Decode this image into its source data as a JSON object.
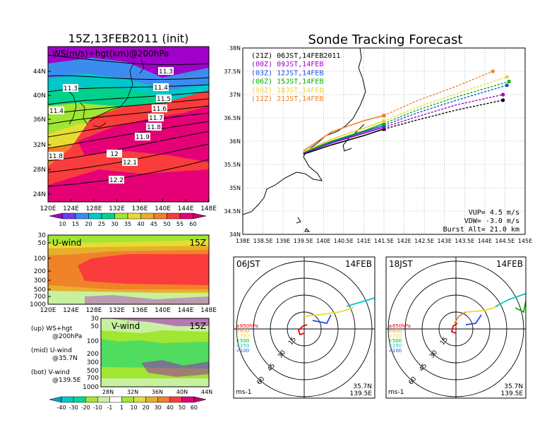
{
  "left_title": "15Z,13FEB2011 (init)",
  "right_title": "Sonde Tracking Forecast",
  "top_map": {
    "label": "WS(m/s)+hgt(km)@200hPa",
    "lat_ticks": [
      "44N",
      "40N",
      "36N",
      "32N",
      "28N",
      "24N"
    ],
    "lon_ticks": [
      "120E",
      "124E",
      "128E",
      "132E",
      "136E",
      "140E",
      "144E",
      "148E"
    ],
    "contour_labels": [
      "11.3",
      "11.3",
      "11.4",
      "11.5",
      "11.6",
      "11.7",
      "11.8",
      "11.9",
      "12",
      "12.1",
      "12.2",
      "11.4",
      "11.8"
    ],
    "colorbar_ticks": [
      "10",
      "15",
      "20",
      "25",
      "30",
      "35",
      "40",
      "45",
      "50",
      "55",
      "60"
    ],
    "colorbar_colors": [
      "#a000c8",
      "#6e3cf0",
      "#3c8cf0",
      "#00c8c8",
      "#00d28c",
      "#a0e632",
      "#e6dc32",
      "#e6af2d",
      "#f08228",
      "#fa3c3c",
      "#e60078",
      "#c0006e"
    ]
  },
  "u_wind": {
    "label": "U-wind",
    "time": "15Z",
    "p_ticks": [
      "30",
      "50",
      "100",
      "200",
      "300",
      "500",
      "700",
      "1000"
    ],
    "lon_ticks": [
      "120E",
      "124E",
      "128E",
      "132E",
      "136E",
      "140E",
      "144E",
      "148E"
    ]
  },
  "v_wind": {
    "label": "V-wind",
    "time": "15Z",
    "p_ticks": [
      "30",
      "50",
      "100",
      "200",
      "300",
      "500",
      "700",
      "1000"
    ],
    "lat_ticks": [
      "28N",
      "32N",
      "36N",
      "40N",
      "44N"
    ],
    "colorbar_ticks": [
      "-40",
      "-30",
      "-20",
      "-10",
      "-1",
      "1",
      "10",
      "20",
      "30",
      "40",
      "50",
      "60"
    ],
    "colorbar_colors": [
      "#00a0c8",
      "#00c8c8",
      "#00dc96",
      "#a0e632",
      "#c8f0a0",
      "#ffffff",
      "#a0e632",
      "#e6dc32",
      "#e6af2d",
      "#f08228",
      "#fa3c3c",
      "#e60078",
      "#c0006e"
    ]
  },
  "legend_notes": {
    "up1": "(up) WS+hgt",
    "up2": "@200hPa",
    "mid1": "(mid) U-wind",
    "mid2": "@35.7N",
    "bot1": "(bot) V-wind",
    "bot2": "@139.5E"
  },
  "chart_data": {
    "type": "line",
    "title": "Sonde Tracking Forecast",
    "xlabel": "",
    "ylabel": "",
    "xlim": [
      138,
      145
    ],
    "ylim": [
      34,
      38
    ],
    "x_ticks": [
      "138E",
      "138.5E",
      "139E",
      "139.5E",
      "140E",
      "140.5E",
      "141E",
      "141.5E",
      "142E",
      "142.5E",
      "143E",
      "143.5E",
      "144E",
      "144.5E",
      "145E"
    ],
    "y_ticks": [
      "34N",
      "34.5N",
      "35N",
      "35.5N",
      "36N",
      "36.5N",
      "37N",
      "37.5N",
      "38N"
    ],
    "grid": true,
    "series": [
      {
        "name": "(21Z) 06JST,14FEB2011",
        "color": "#000000",
        "x": [
          139.5,
          140.2,
          141.0,
          141.5,
          142.3,
          143.3,
          144.45
        ],
        "y": [
          35.72,
          35.92,
          36.12,
          36.26,
          36.45,
          36.67,
          36.88
        ]
      },
      {
        "name": "(00Z) 09JST,14FEB",
        "color": "#a000c8",
        "x": [
          139.5,
          140.2,
          141.0,
          141.5,
          142.3,
          143.3,
          144.45
        ],
        "y": [
          35.74,
          35.96,
          36.17,
          36.3,
          36.52,
          36.78,
          37.0
        ]
      },
      {
        "name": "(03Z) 12JST,14FEB",
        "color": "#1f4fe6",
        "x": [
          139.5,
          140.2,
          141.0,
          141.5,
          142.3,
          143.3,
          144.55
        ],
        "y": [
          35.75,
          35.98,
          36.2,
          36.34,
          36.6,
          36.88,
          37.2
        ]
      },
      {
        "name": "(06Z) 15JST,14FEB",
        "color": "#00b400",
        "x": [
          139.5,
          140.2,
          141.0,
          141.5,
          142.3,
          143.3,
          144.6
        ],
        "y": [
          35.76,
          36.0,
          36.22,
          36.38,
          36.66,
          36.95,
          37.28
        ]
      },
      {
        "name": "(09Z) 18JST,14FEB",
        "color": "#f0d23c",
        "x": [
          139.5,
          140.2,
          141.0,
          141.5,
          142.3,
          143.3,
          144.55
        ],
        "y": [
          35.77,
          36.04,
          36.28,
          36.43,
          36.72,
          37.02,
          37.38
        ]
      },
      {
        "name": "(12Z) 21JST,14FEB",
        "color": "#f08228",
        "x": [
          139.5,
          140.2,
          141.0,
          141.5,
          142.3,
          143.3,
          144.2
        ],
        "y": [
          35.79,
          36.2,
          36.44,
          36.55,
          36.86,
          37.18,
          37.5
        ]
      }
    ],
    "annotations": [
      "VUP= 4.5 m/s",
      "VDW= -3.0 m/s",
      "Burst Alt= 21.0 km"
    ]
  },
  "hodo_left": {
    "time": "06JST",
    "date": "14FEB",
    "loc1": "35.7N",
    "loc2": "139.5E",
    "unit": "ms-1",
    "rings": [
      "15",
      "30",
      "45",
      "60"
    ],
    "legend": [
      "≥850hPa",
      "<850",
      "<700",
      "<500",
      "<250",
      "<100"
    ],
    "legend_colors": [
      "#e60000",
      "#f08228",
      "#e6dc32",
      "#00b400",
      "#00c8c8",
      "#1f4fe6"
    ]
  },
  "hodo_right": {
    "time": "18JST",
    "date": "14FEB",
    "loc1": "35.7N",
    "loc2": "139.5E",
    "unit": "ms-1",
    "rings": [
      "15",
      "30",
      "45",
      "60"
    ],
    "legend": [
      "≥850hPa",
      "<850",
      "<700",
      "<500",
      "<250",
      "<100"
    ],
    "legend_colors": [
      "#e60000",
      "#f08228",
      "#e6dc32",
      "#00b400",
      "#00c8c8",
      "#1f4fe6"
    ]
  }
}
